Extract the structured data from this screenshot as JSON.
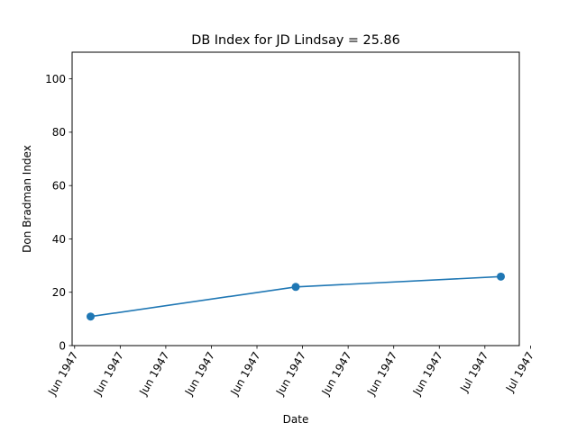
{
  "chart_data": {
    "type": "line",
    "title": "DB Index for JD Lindsay = 25.86",
    "xlabel": "Date",
    "ylabel": "Don Bradman Index",
    "x_ticks": [
      "Jun 1947",
      "Jun 1947",
      "Jun 1947",
      "Jun 1947",
      "Jun 1947",
      "Jun 1947",
      "Jun 1947",
      "Jun 1947",
      "Jun 1947",
      "Jul 1947",
      "Jul 1947"
    ],
    "y_ticks": [
      0,
      20,
      40,
      60,
      80,
      100
    ],
    "ylim": [
      0,
      110
    ],
    "grid": false,
    "series": [
      {
        "points": [
          {
            "x": "1947-06-07",
            "y": 10.89
          },
          {
            "x": "1947-06-21",
            "y": 22.0
          },
          {
            "x": "1947-07-05",
            "y": 25.86
          }
        ],
        "color": "#1f77b4"
      }
    ]
  }
}
